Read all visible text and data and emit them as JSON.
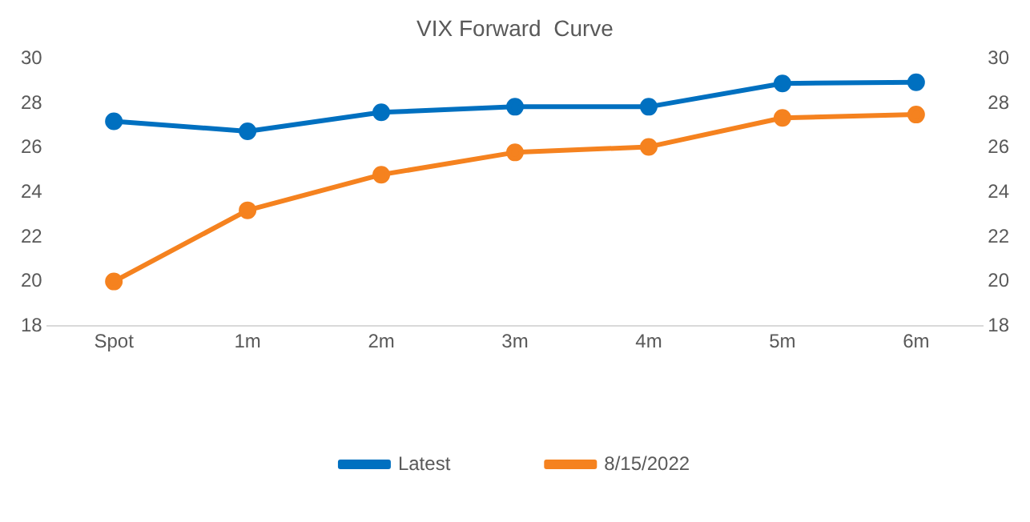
{
  "chart_data": {
    "type": "line",
    "title": "VIX Forward  Curve",
    "categories": [
      "Spot",
      "1m",
      "2m",
      "3m",
      "4m",
      "5m",
      "6m"
    ],
    "series": [
      {
        "name": "Latest",
        "color": "#0070c0",
        "values": [
          27.2,
          26.75,
          27.6,
          27.85,
          27.85,
          28.9,
          28.95
        ]
      },
      {
        "name": "8/15/2022",
        "color": "#f5821f",
        "values": [
          20.0,
          23.2,
          24.8,
          25.8,
          26.05,
          27.35,
          27.5
        ]
      }
    ],
    "ylim": [
      18,
      30
    ],
    "yticks": [
      18,
      20,
      22,
      24,
      26,
      28,
      30
    ],
    "y2lim": [
      18,
      30
    ],
    "y2ticks": [
      18,
      20,
      22,
      24,
      26,
      28,
      30
    ],
    "grid": false,
    "legend": "bottom",
    "marker": "circle",
    "line_style": "solid"
  }
}
